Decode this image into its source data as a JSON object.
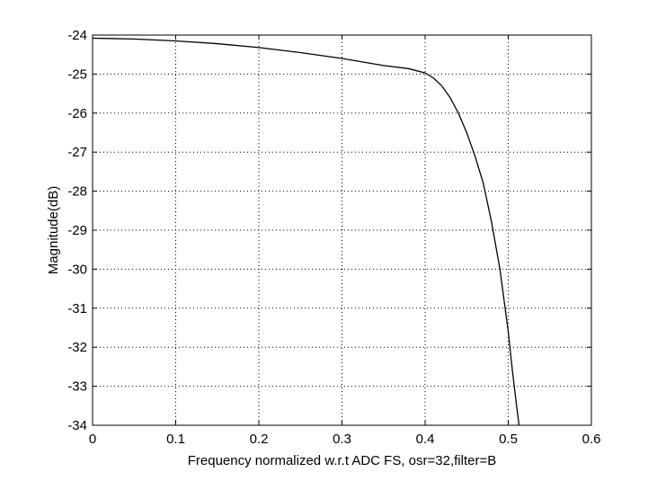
{
  "chart_data": {
    "type": "line",
    "title": "",
    "xlabel": "Frequency normalized w.r.t ADC FS, osr=32,filter=B",
    "ylabel": "Magnitude(dB)",
    "xlim": [
      0,
      0.6
    ],
    "ylim": [
      -34,
      -24
    ],
    "xticks": [
      0,
      0.1,
      0.2,
      0.3,
      0.4,
      0.5,
      0.6
    ],
    "xtick_labels": [
      "0",
      "0.1",
      "0.2",
      "0.3",
      "0.4",
      "0.5",
      "0.6"
    ],
    "yticks": [
      -24,
      -25,
      -26,
      -27,
      -28,
      -29,
      -30,
      -31,
      -32,
      -33,
      -34
    ],
    "ytick_labels": [
      "-24",
      "-25",
      "-26",
      "-27",
      "-28",
      "-29",
      "-30",
      "-31",
      "-32",
      "-33",
      "-34"
    ],
    "grid": true,
    "series": [
      {
        "x": [
          0,
          0.05,
          0.1,
          0.15,
          0.2,
          0.25,
          0.3,
          0.35,
          0.38,
          0.4,
          0.41,
          0.42,
          0.43,
          0.44,
          0.45,
          0.46,
          0.47,
          0.48,
          0.49,
          0.5,
          0.505,
          0.51,
          0.513
        ],
        "y": [
          -24.08,
          -24.1,
          -24.15,
          -24.22,
          -24.32,
          -24.45,
          -24.6,
          -24.78,
          -24.86,
          -24.97,
          -25.1,
          -25.3,
          -25.6,
          -26.0,
          -26.5,
          -27.1,
          -27.8,
          -28.8,
          -30.0,
          -31.6,
          -32.6,
          -33.5,
          -34.0
        ]
      }
    ]
  }
}
